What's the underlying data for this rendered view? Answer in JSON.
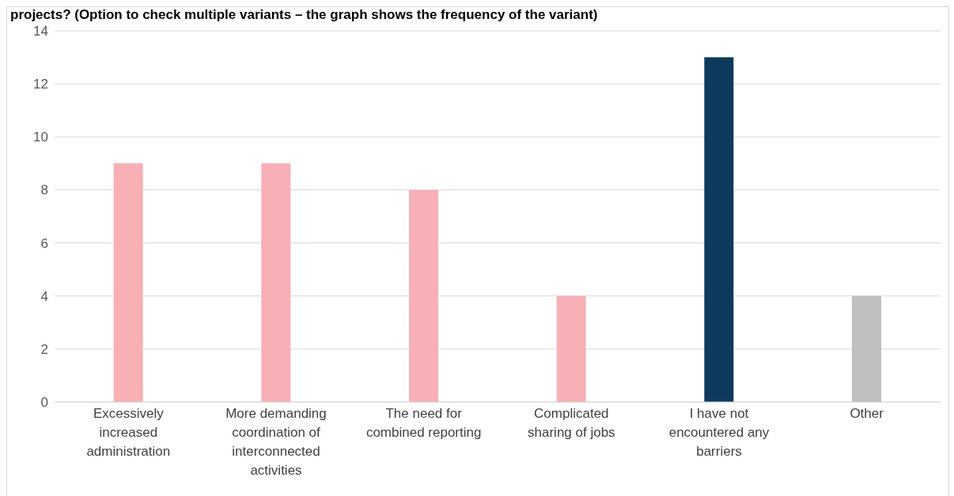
{
  "chart_data": {
    "type": "bar",
    "title": "projects? (Option to check multiple variants – the graph shows the frequency of the variant)",
    "categories": [
      "Excessively increased administration",
      "More demanding coordination of interconnected activities",
      "The need for combined reporting",
      "Complicated sharing of jobs",
      "I have not encountered any barriers",
      "Other"
    ],
    "values": [
      9,
      9,
      8,
      4,
      13,
      4
    ],
    "colors": [
      "#f8afb5",
      "#f8afb5",
      "#f8afb5",
      "#f8afb5",
      "#0d3a5c",
      "#bfbfbf"
    ],
    "ylim": [
      0,
      14
    ],
    "yticks": [
      0,
      2,
      4,
      6,
      8,
      10,
      12,
      14
    ],
    "grid": "y"
  }
}
